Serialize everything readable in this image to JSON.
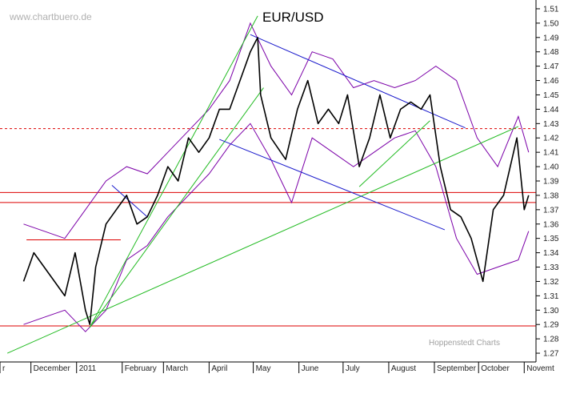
{
  "chart_data": {
    "type": "line",
    "title": "EUR/USD",
    "watermark": "www.chartbuero.de",
    "credit": "Hoppenstedt Charts",
    "x_labels": [
      "r",
      "December",
      "2011",
      "February",
      "March",
      "April",
      "May",
      "June",
      "July",
      "August",
      "September",
      "October",
      "Novemt"
    ],
    "y_ticks": [
      "1.51",
      "1.50",
      "1.49",
      "1.48",
      "1.47",
      "1.46",
      "1.45",
      "1.44",
      "1.43",
      "1.42",
      "1.41",
      "1.40",
      "1.39",
      "1.38",
      "1.37",
      "1.36",
      "1.35",
      "1.34",
      "1.33",
      "1.32",
      "1.31",
      "1.30",
      "1.29",
      "1.28",
      "1.27"
    ],
    "ylim": [
      1.265,
      1.515
    ],
    "grid": false,
    "colors": {
      "price": "#000000",
      "bollinger": "#7b00a8",
      "uptrend": "#22bb22",
      "downtrend": "#1a1acc",
      "level": "#dd0000"
    },
    "series": [
      {
        "kind": "price",
        "x": [
          "2010-11-26",
          "2010-12-03",
          "2010-12-10",
          "2010-12-17",
          "2010-12-24",
          "2010-12-31",
          "2011-01-07",
          "2011-01-10",
          "2011-01-14",
          "2011-01-21",
          "2011-01-28",
          "2011-02-04",
          "2011-02-11",
          "2011-02-18",
          "2011-02-25",
          "2011-03-04",
          "2011-03-11",
          "2011-03-18",
          "2011-03-25",
          "2011-04-01",
          "2011-04-08",
          "2011-04-15",
          "2011-04-22",
          "2011-04-29",
          "2011-05-04",
          "2011-05-06",
          "2011-05-13",
          "2011-05-23",
          "2011-05-31",
          "2011-06-07",
          "2011-06-14",
          "2011-06-21",
          "2011-06-28",
          "2011-07-04",
          "2011-07-12",
          "2011-07-19",
          "2011-07-26",
          "2011-08-02",
          "2011-08-09",
          "2011-08-16",
          "2011-08-23",
          "2011-08-29",
          "2011-09-05",
          "2011-09-12",
          "2011-09-19",
          "2011-09-26",
          "2011-10-04",
          "2011-10-11",
          "2011-10-18",
          "2011-10-27",
          "2011-11-01",
          "2011-11-04"
        ],
        "y": [
          1.32,
          1.34,
          1.33,
          1.32,
          1.31,
          1.34,
          1.3,
          1.29,
          1.33,
          1.36,
          1.37,
          1.38,
          1.36,
          1.365,
          1.38,
          1.4,
          1.39,
          1.42,
          1.41,
          1.42,
          1.44,
          1.44,
          1.46,
          1.48,
          1.49,
          1.45,
          1.42,
          1.405,
          1.44,
          1.46,
          1.43,
          1.44,
          1.43,
          1.45,
          1.4,
          1.42,
          1.45,
          1.42,
          1.44,
          1.445,
          1.44,
          1.45,
          1.4,
          1.37,
          1.365,
          1.35,
          1.32,
          1.37,
          1.38,
          1.42,
          1.37,
          1.38
        ]
      },
      {
        "kind": "bollinger-upper",
        "x": [
          "2010-11-26",
          "2010-12-10",
          "2010-12-24",
          "2011-01-07",
          "2011-01-21",
          "2011-02-04",
          "2011-02-18",
          "2011-03-04",
          "2011-03-18",
          "2011-04-01",
          "2011-04-15",
          "2011-04-29",
          "2011-05-13",
          "2011-05-27",
          "2011-06-10",
          "2011-06-24",
          "2011-07-08",
          "2011-07-22",
          "2011-08-05",
          "2011-08-19",
          "2011-09-02",
          "2011-09-16",
          "2011-09-30",
          "2011-10-14",
          "2011-10-28",
          "2011-11-04"
        ],
        "y": [
          1.36,
          1.355,
          1.35,
          1.37,
          1.39,
          1.4,
          1.395,
          1.41,
          1.425,
          1.44,
          1.46,
          1.5,
          1.47,
          1.45,
          1.48,
          1.475,
          1.455,
          1.46,
          1.455,
          1.46,
          1.47,
          1.46,
          1.42,
          1.4,
          1.435,
          1.41
        ]
      },
      {
        "kind": "bollinger-lower",
        "x": [
          "2010-11-26",
          "2010-12-10",
          "2010-12-24",
          "2011-01-07",
          "2011-01-21",
          "2011-02-04",
          "2011-02-18",
          "2011-03-04",
          "2011-03-18",
          "2011-04-01",
          "2011-04-15",
          "2011-04-29",
          "2011-05-13",
          "2011-05-27",
          "2011-06-10",
          "2011-06-24",
          "2011-07-08",
          "2011-07-22",
          "2011-08-05",
          "2011-08-19",
          "2011-09-02",
          "2011-09-16",
          "2011-09-30",
          "2011-10-14",
          "2011-10-28",
          "2011-11-04"
        ],
        "y": [
          1.29,
          1.295,
          1.3,
          1.285,
          1.3,
          1.335,
          1.345,
          1.365,
          1.38,
          1.395,
          1.415,
          1.43,
          1.405,
          1.375,
          1.42,
          1.41,
          1.4,
          1.41,
          1.42,
          1.425,
          1.4,
          1.35,
          1.325,
          1.33,
          1.335,
          1.355
        ]
      }
    ],
    "trendlines": [
      {
        "kind": "uptrend",
        "x": [
          "2010-11-15",
          "2011-10-28"
        ],
        "y": [
          1.27,
          1.428
        ]
      },
      {
        "kind": "uptrend",
        "x": [
          "2011-01-10",
          "2011-05-04"
        ],
        "y": [
          1.288,
          1.505
        ]
      },
      {
        "kind": "uptrend",
        "x": [
          "2011-01-10",
          "2011-05-08"
        ],
        "y": [
          1.288,
          1.455
        ]
      },
      {
        "kind": "uptrend",
        "x": [
          "2011-07-12",
          "2011-08-29"
        ],
        "y": [
          1.386,
          1.432
        ]
      },
      {
        "kind": "downtrend",
        "x": [
          "2011-04-29",
          "2011-09-22"
        ],
        "y": [
          1.492,
          1.427
        ]
      },
      {
        "kind": "downtrend",
        "x": [
          "2011-04-08",
          "2011-09-08"
        ],
        "y": [
          1.419,
          1.356
        ]
      },
      {
        "kind": "downtrend",
        "x": [
          "2011-01-25",
          "2011-02-18"
        ],
        "y": [
          1.387,
          1.365
        ]
      },
      {
        "kind": "level",
        "y": 1.4265,
        "style": "dashed"
      },
      {
        "kind": "level",
        "y": 1.382
      },
      {
        "kind": "level",
        "y": 1.375
      },
      {
        "kind": "level",
        "y": 1.289
      },
      {
        "kind": "level",
        "x": [
          "2010-11-28",
          "2011-01-31"
        ],
        "y": 1.349
      }
    ]
  }
}
